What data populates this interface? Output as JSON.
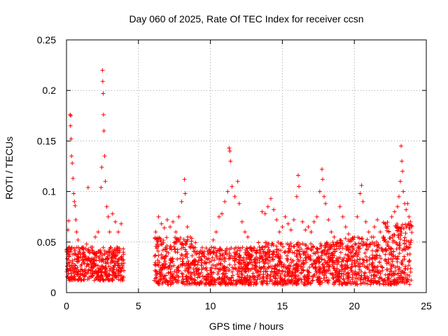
{
  "chart_data": {
    "type": "scatter",
    "title": "Day 060 of 2025, Rate Of TEC Index for receiver ccsn",
    "xlabel": "GPS time / hours",
    "ylabel": "ROTI / TECUs",
    "xlim": [
      0,
      25
    ],
    "ylim": [
      0,
      0.25
    ],
    "xticks": [
      0,
      5,
      10,
      15,
      20,
      25
    ],
    "yticks": [
      0,
      0.05,
      0.1,
      0.15,
      0.2,
      0.25
    ],
    "xtick_labels": [
      "0",
      "5",
      "10",
      "15",
      "20",
      "25"
    ],
    "ytick_labels": [
      "0",
      "0.05",
      "0.1",
      "0.15",
      "0.2",
      "0.25"
    ],
    "grid": true,
    "marker": "plus",
    "color": "#ff0000",
    "data_gap_hours": [
      4.0,
      6.1
    ],
    "points": [
      [
        0.05,
        0.026
      ],
      [
        0.1,
        0.062
      ],
      [
        0.15,
        0.071
      ],
      [
        0.2,
        0.045
      ],
      [
        0.25,
        0.176
      ],
      [
        0.28,
        0.165
      ],
      [
        0.3,
        0.175
      ],
      [
        0.32,
        0.152
      ],
      [
        0.35,
        0.135
      ],
      [
        0.4,
        0.128
      ],
      [
        0.45,
        0.113
      ],
      [
        0.5,
        0.098
      ],
      [
        0.55,
        0.09
      ],
      [
        0.6,
        0.086
      ],
      [
        0.65,
        0.072
      ],
      [
        0.7,
        0.06
      ],
      [
        0.8,
        0.052
      ],
      [
        0.9,
        0.041
      ],
      [
        1.0,
        0.035
      ],
      [
        1.1,
        0.044
      ],
      [
        1.2,
        0.038
      ],
      [
        1.4,
        0.048
      ],
      [
        1.5,
        0.104
      ],
      [
        1.6,
        0.04
      ],
      [
        1.8,
        0.045
      ],
      [
        2.0,
        0.055
      ],
      [
        2.2,
        0.06
      ],
      [
        2.4,
        0.104
      ],
      [
        2.45,
        0.124
      ],
      [
        2.5,
        0.22
      ],
      [
        2.52,
        0.209
      ],
      [
        2.55,
        0.197
      ],
      [
        2.57,
        0.176
      ],
      [
        2.6,
        0.16
      ],
      [
        2.65,
        0.135
      ],
      [
        2.7,
        0.11
      ],
      [
        2.8,
        0.085
      ],
      [
        2.9,
        0.075
      ],
      [
        3.0,
        0.06
      ],
      [
        3.2,
        0.078
      ],
      [
        3.4,
        0.07
      ],
      [
        3.6,
        0.06
      ],
      [
        3.8,
        0.068
      ],
      [
        3.95,
        0.04
      ],
      [
        6.2,
        0.06
      ],
      [
        6.4,
        0.075
      ],
      [
        6.6,
        0.068
      ],
      [
        6.8,
        0.064
      ],
      [
        7.0,
        0.072
      ],
      [
        7.2,
        0.065
      ],
      [
        7.4,
        0.07
      ],
      [
        7.6,
        0.06
      ],
      [
        7.8,
        0.075
      ],
      [
        8.0,
        0.09
      ],
      [
        8.2,
        0.112
      ],
      [
        8.25,
        0.098
      ],
      [
        8.4,
        0.065
      ],
      [
        8.6,
        0.055
      ],
      [
        8.8,
        0.044
      ],
      [
        9.0,
        0.038
      ],
      [
        9.2,
        0.035
      ],
      [
        9.4,
        0.032
      ],
      [
        9.6,
        0.03
      ],
      [
        9.8,
        0.033
      ],
      [
        10.0,
        0.04
      ],
      [
        10.2,
        0.052
      ],
      [
        10.4,
        0.06
      ],
      [
        10.6,
        0.075
      ],
      [
        10.8,
        0.078
      ],
      [
        11.0,
        0.09
      ],
      [
        11.2,
        0.1
      ],
      [
        11.3,
        0.143
      ],
      [
        11.35,
        0.14
      ],
      [
        11.4,
        0.13
      ],
      [
        11.5,
        0.105
      ],
      [
        11.7,
        0.095
      ],
      [
        11.9,
        0.11
      ],
      [
        12.0,
        0.088
      ],
      [
        12.2,
        0.07
      ],
      [
        12.4,
        0.06
      ],
      [
        12.6,
        0.055
      ],
      [
        12.8,
        0.045
      ],
      [
        13.0,
        0.042
      ],
      [
        13.2,
        0.04
      ],
      [
        13.4,
        0.045
      ],
      [
        13.6,
        0.08
      ],
      [
        13.8,
        0.078
      ],
      [
        14.0,
        0.085
      ],
      [
        14.2,
        0.093
      ],
      [
        14.4,
        0.082
      ],
      [
        14.6,
        0.072
      ],
      [
        14.8,
        0.06
      ],
      [
        15.0,
        0.065
      ],
      [
        15.2,
        0.075
      ],
      [
        15.4,
        0.068
      ],
      [
        15.6,
        0.062
      ],
      [
        15.8,
        0.072
      ],
      [
        16.0,
        0.095
      ],
      [
        16.1,
        0.116
      ],
      [
        16.15,
        0.105
      ],
      [
        16.4,
        0.07
      ],
      [
        16.6,
        0.062
      ],
      [
        16.8,
        0.065
      ],
      [
        17.0,
        0.06
      ],
      [
        17.2,
        0.07
      ],
      [
        17.4,
        0.075
      ],
      [
        17.6,
        0.1
      ],
      [
        17.75,
        0.122
      ],
      [
        17.8,
        0.112
      ],
      [
        17.9,
        0.095
      ],
      [
        18.0,
        0.088
      ],
      [
        18.2,
        0.072
      ],
      [
        18.4,
        0.06
      ],
      [
        18.6,
        0.055
      ],
      [
        18.8,
        0.05
      ],
      [
        19.0,
        0.085
      ],
      [
        19.2,
        0.075
      ],
      [
        19.4,
        0.065
      ],
      [
        19.6,
        0.058
      ],
      [
        19.8,
        0.052
      ],
      [
        20.0,
        0.055
      ],
      [
        20.2,
        0.075
      ],
      [
        20.4,
        0.098
      ],
      [
        20.5,
        0.106
      ],
      [
        20.6,
        0.09
      ],
      [
        20.8,
        0.07
      ],
      [
        21.0,
        0.06
      ],
      [
        21.2,
        0.055
      ],
      [
        21.4,
        0.065
      ],
      [
        21.6,
        0.072
      ],
      [
        21.8,
        0.06
      ],
      [
        22.0,
        0.055
      ],
      [
        22.2,
        0.05
      ],
      [
        22.4,
        0.06
      ],
      [
        22.6,
        0.075
      ],
      [
        22.8,
        0.08
      ],
      [
        23.0,
        0.085
      ],
      [
        23.1,
        0.095
      ],
      [
        23.2,
        0.11
      ],
      [
        23.25,
        0.145
      ],
      [
        23.3,
        0.13
      ],
      [
        23.35,
        0.12
      ],
      [
        23.4,
        0.1
      ],
      [
        23.5,
        0.088
      ],
      [
        23.6,
        0.082
      ],
      [
        23.7,
        0.088
      ],
      [
        23.8,
        0.075
      ],
      [
        23.9,
        0.07
      ]
    ]
  }
}
